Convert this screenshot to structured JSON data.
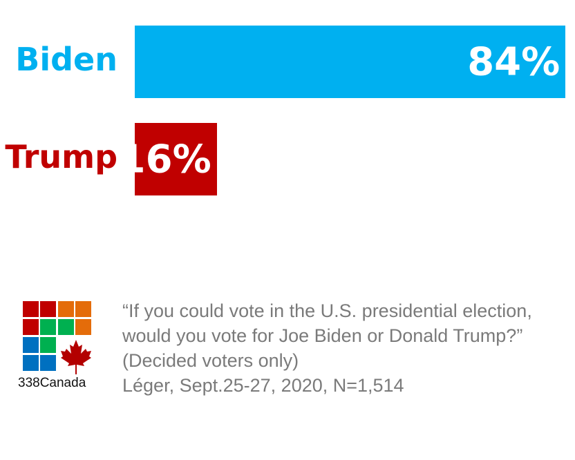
{
  "chart_data": {
    "type": "bar",
    "orientation": "horizontal",
    "categories": [
      "Biden",
      "Trump"
    ],
    "values": [
      84,
      16
    ],
    "value_labels": [
      "84%",
      "16%"
    ],
    "colors": [
      "#00b0f0",
      "#c00000"
    ],
    "xlim": [
      0,
      100
    ]
  },
  "caption": {
    "lines": [
      "“If you could vote in the U.S. presidential election,",
      "would you vote for Joe Biden or Donald Trump?”",
      "(Decided voters only)",
      "Léger, Sept.25-27, 2020, N=1,514"
    ]
  },
  "logo": {
    "name": "338Canada"
  }
}
